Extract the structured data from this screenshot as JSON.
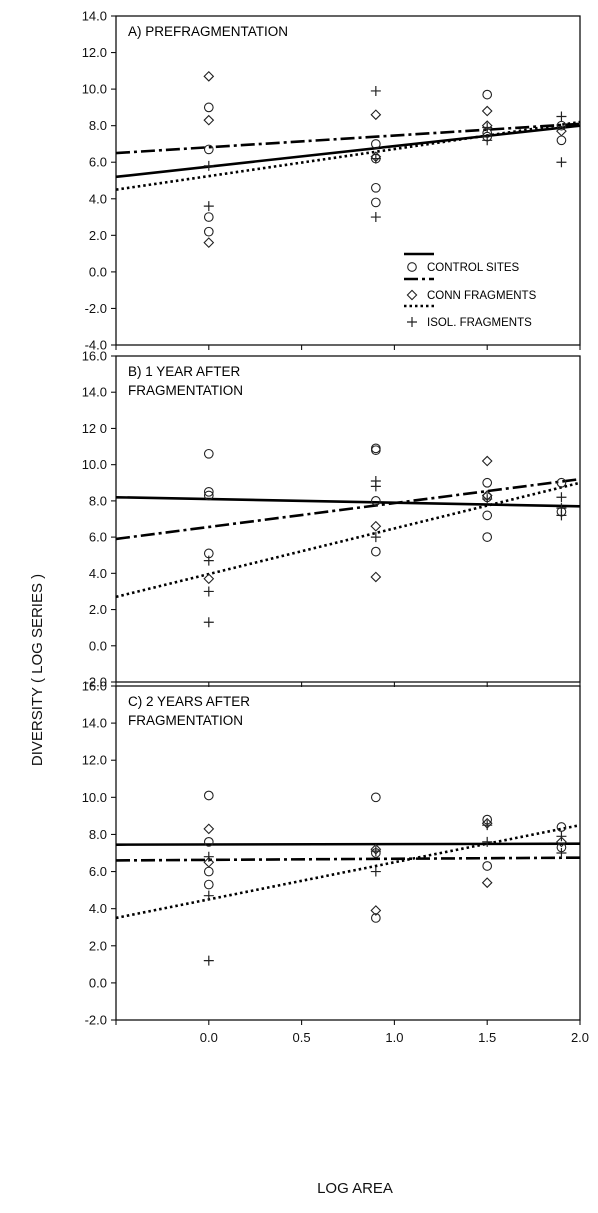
{
  "chart_data": {
    "type": "scatter",
    "ylabel": "DIVERSITY  ( LOG SERIES )",
    "xlabel": "LOG AREA",
    "x_ticks": [
      "0.0",
      "0.5",
      "1.0",
      "1.5",
      "2.0"
    ],
    "xlim": [
      -0.5,
      2.0
    ],
    "legend": {
      "placement": "lower-right of panel A",
      "entries": [
        {
          "name": "CONTROL SITES",
          "line": "solid",
          "marker": "circle"
        },
        {
          "name": "CONN  FRAGMENTS",
          "line": "dash-dot",
          "marker": "diamond"
        },
        {
          "name": "ISOL. FRAGMENTS",
          "line": "dotted",
          "marker": "plus"
        }
      ]
    },
    "panels": [
      {
        "title_lines": [
          "A) PREFRAGMENTATION"
        ],
        "ylim": [
          -4,
          14
        ],
        "y_ticks": [
          "-4.0",
          "-2.0",
          "0.0",
          "2.0",
          "4.0",
          "6.0",
          "8.0",
          "10.0",
          "12.0",
          "14.0"
        ],
        "series": [
          {
            "marker": "circle",
            "points": [
              [
                0.0,
                9.0
              ],
              [
                0.0,
                6.7
              ],
              [
                0.0,
                3.0
              ],
              [
                0.0,
                2.2
              ],
              [
                0.9,
                7.0
              ],
              [
                0.9,
                6.2
              ],
              [
                0.9,
                4.6
              ],
              [
                0.9,
                3.8
              ],
              [
                1.5,
                9.7
              ],
              [
                1.5,
                7.6
              ],
              [
                1.5,
                7.4
              ],
              [
                1.9,
                8.0
              ],
              [
                1.9,
                7.2
              ]
            ],
            "fit": [
              [
                -0.5,
                5.2
              ],
              [
                2.0,
                8.0
              ]
            ]
          },
          {
            "marker": "diamond",
            "points": [
              [
                0.0,
                10.7
              ],
              [
                0.0,
                8.3
              ],
              [
                0.0,
                1.6
              ],
              [
                0.9,
                8.6
              ],
              [
                0.9,
                6.3
              ],
              [
                1.5,
                8.8
              ],
              [
                1.5,
                8.0
              ],
              [
                1.9,
                7.7
              ]
            ],
            "fit": [
              [
                -0.5,
                6.5
              ],
              [
                2.0,
                8.1
              ]
            ]
          },
          {
            "marker": "plus",
            "points": [
              [
                0.0,
                5.8
              ],
              [
                0.0,
                3.6
              ],
              [
                0.9,
                9.9
              ],
              [
                0.9,
                3.0
              ],
              [
                0.9,
                6.2
              ],
              [
                1.5,
                7.9
              ],
              [
                1.5,
                7.2
              ],
              [
                1.9,
                8.5
              ],
              [
                1.9,
                6.0
              ]
            ],
            "fit": [
              [
                -0.5,
                4.5
              ],
              [
                2.0,
                8.2
              ]
            ]
          }
        ]
      },
      {
        "title_lines": [
          "B) 1 YEAR AFTER",
          "FRAGMENTATION"
        ],
        "ylim": [
          -2,
          16
        ],
        "y_ticks": [
          "-2.0",
          "0.0",
          "2.0",
          "4.0",
          "6.0",
          "8.0",
          "10.0",
          "12 0",
          "14.0",
          "16.0"
        ],
        "series": [
          {
            "marker": "circle",
            "points": [
              [
                0.0,
                10.6
              ],
              [
                0.0,
                8.5
              ],
              [
                0.0,
                8.3
              ],
              [
                0.0,
                5.1
              ],
              [
                0.9,
                10.9
              ],
              [
                0.9,
                10.8
              ],
              [
                0.9,
                8.0
              ],
              [
                0.9,
                5.2
              ],
              [
                1.5,
                9.0
              ],
              [
                1.5,
                8.2
              ],
              [
                1.5,
                7.2
              ],
              [
                1.5,
                6.0
              ],
              [
                1.9,
                9.0
              ],
              [
                1.9,
                7.4
              ]
            ],
            "fit": [
              [
                -0.5,
                8.2
              ],
              [
                2.0,
                7.7
              ]
            ]
          },
          {
            "marker": "diamond",
            "points": [
              [
                0.0,
                3.7
              ],
              [
                0.9,
                6.6
              ],
              [
                0.9,
                3.8
              ],
              [
                1.5,
                10.2
              ],
              [
                1.5,
                8.3
              ]
            ],
            "fit": [
              [
                -0.5,
                5.9
              ],
              [
                2.0,
                9.2
              ]
            ]
          },
          {
            "marker": "plus",
            "points": [
              [
                0.0,
                4.7
              ],
              [
                0.0,
                3.0
              ],
              [
                0.0,
                1.3
              ],
              [
                0.9,
                9.1
              ],
              [
                0.9,
                8.8
              ],
              [
                0.9,
                6.0
              ],
              [
                1.5,
                8.1
              ],
              [
                1.9,
                8.2
              ],
              [
                1.9,
                7.6
              ],
              [
                1.9,
                7.2
              ]
            ],
            "fit": [
              [
                -0.5,
                2.7
              ],
              [
                2.0,
                9.0
              ]
            ]
          }
        ]
      },
      {
        "title_lines": [
          "C) 2 YEARS AFTER",
          "FRAGMENTATION"
        ],
        "ylim": [
          -2,
          16
        ],
        "y_ticks": [
          "-2.0",
          "0.0",
          "2.0",
          "4.0",
          "6.0",
          "8.0",
          "10.0",
          "12.0",
          "14.0",
          "16.0"
        ],
        "series": [
          {
            "marker": "circle",
            "points": [
              [
                0.0,
                10.1
              ],
              [
                0.0,
                7.6
              ],
              [
                0.0,
                6.0
              ],
              [
                0.0,
                5.3
              ],
              [
                0.9,
                10.0
              ],
              [
                0.9,
                7.0
              ],
              [
                0.9,
                3.5
              ],
              [
                1.5,
                8.8
              ],
              [
                1.5,
                6.3
              ],
              [
                1.9,
                8.4
              ],
              [
                1.9,
                7.3
              ]
            ],
            "fit": [
              [
                -0.5,
                7.45
              ],
              [
                2.0,
                7.5
              ]
            ]
          },
          {
            "marker": "diamond",
            "points": [
              [
                0.0,
                8.3
              ],
              [
                0.0,
                6.5
              ],
              [
                0.9,
                3.9
              ],
              [
                0.9,
                7.2
              ],
              [
                1.5,
                8.6
              ],
              [
                1.5,
                5.4
              ],
              [
                1.9,
                7.6
              ]
            ],
            "fit": [
              [
                -0.5,
                6.6
              ],
              [
                2.0,
                6.75
              ]
            ]
          },
          {
            "marker": "plus",
            "points": [
              [
                0.0,
                6.8
              ],
              [
                0.0,
                4.7
              ],
              [
                0.0,
                1.2
              ],
              [
                0.9,
                7.1
              ],
              [
                0.9,
                6.0
              ],
              [
                1.5,
                8.5
              ],
              [
                1.5,
                7.6
              ],
              [
                1.9,
                7.9
              ],
              [
                1.9,
                7.0
              ]
            ],
            "fit": [
              [
                -0.5,
                3.5
              ],
              [
                2.0,
                8.5
              ]
            ]
          }
        ]
      }
    ]
  }
}
